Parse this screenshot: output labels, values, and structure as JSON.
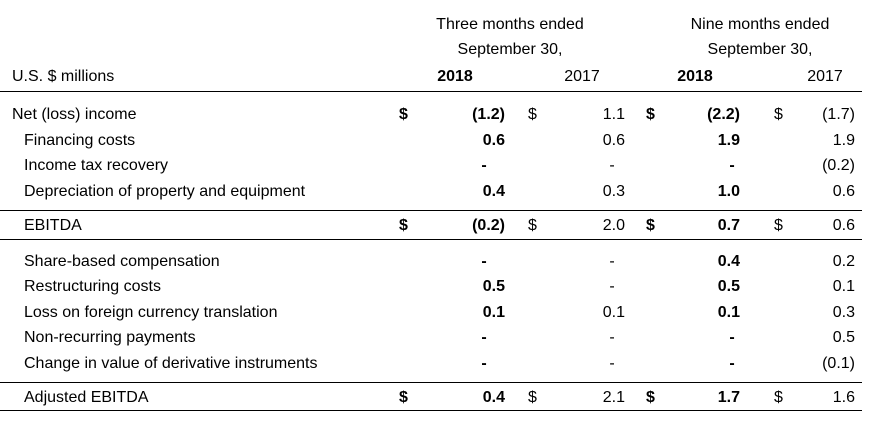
{
  "header": {
    "three_months_line1": "Three months ended",
    "three_months_line2": "September 30,",
    "nine_months_line1": "Nine months ended",
    "nine_months_line2": "September 30,",
    "units_label": "U.S. $ millions",
    "col_3m_2018": "2018",
    "col_3m_2017": "2017",
    "col_9m_2018": "2018",
    "col_9m_2017": "2017"
  },
  "currency": "$",
  "rows": [
    {
      "label": "Net (loss) income",
      "dollar": true,
      "v1": "(1.2)",
      "v2": "1.1",
      "v3": "(2.2)",
      "v4": "(1.7)"
    },
    {
      "label": "Financing costs",
      "dollar": false,
      "v1": "0.6",
      "v2": "0.6",
      "v3": "1.9",
      "v4": "1.9"
    },
    {
      "label": "Income tax recovery",
      "dollar": false,
      "v1": "-",
      "v2": "-",
      "v3": "-",
      "v4": "(0.2)"
    },
    {
      "label": "Depreciation of property and equipment",
      "dollar": false,
      "v1": "0.4",
      "v2": "0.3",
      "v3": "1.0",
      "v4": "0.6"
    },
    {
      "label": "EBITDA",
      "dollar": true,
      "v1": "(0.2)",
      "v2": "2.0",
      "v3": "0.7",
      "v4": "0.6"
    },
    {
      "label": "Share-based compensation",
      "dollar": false,
      "v1": "-",
      "v2": "-",
      "v3": "0.4",
      "v4": "0.2"
    },
    {
      "label": "Restructuring costs",
      "dollar": false,
      "v1": "0.5",
      "v2": "-",
      "v3": "0.5",
      "v4": "0.1"
    },
    {
      "label": "Loss on foreign currency translation",
      "dollar": false,
      "v1": "0.1",
      "v2": "0.1",
      "v3": "0.1",
      "v4": "0.3"
    },
    {
      "label": "Non-recurring payments",
      "dollar": false,
      "v1": "-",
      "v2": "-",
      "v3": "-",
      "v4": "0.5"
    },
    {
      "label": "Change in value of derivative instruments",
      "dollar": false,
      "v1": "-",
      "v2": "-",
      "v3": "-",
      "v4": "(0.1)"
    },
    {
      "label": "Adjusted EBITDA",
      "dollar": true,
      "v1": "0.4",
      "v2": "2.1",
      "v3": "1.7",
      "v4": "1.6"
    }
  ]
}
